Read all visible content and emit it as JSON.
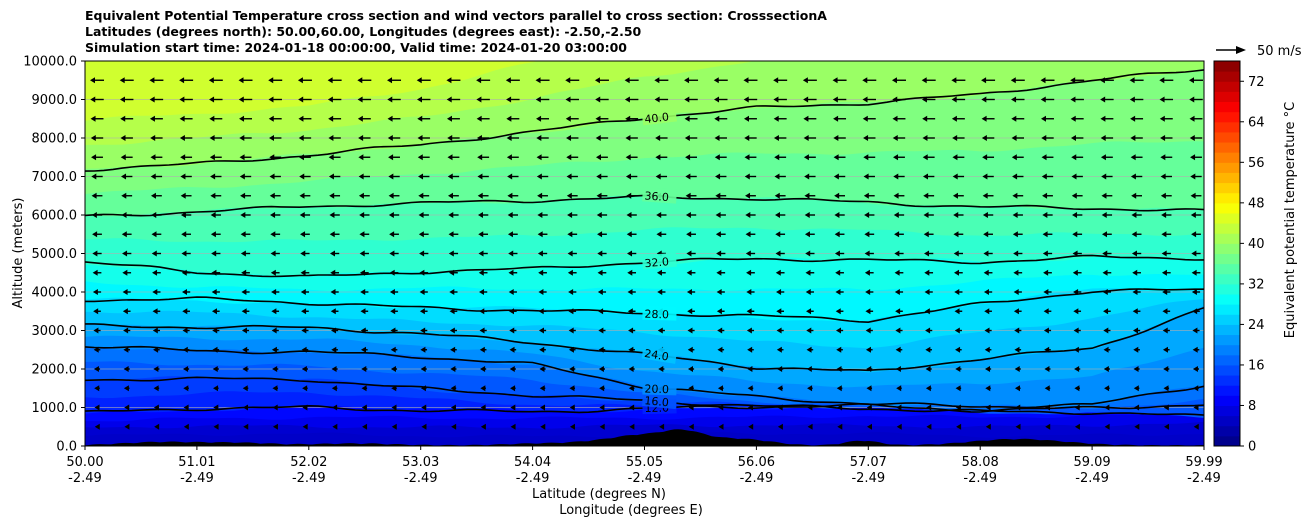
{
  "chart_data": {
    "type": "contour",
    "title_lines": [
      "Equivalent Potential Temperature cross section and wind vectors parallel to cross section: CrosssectionA",
      "Latitudes (degrees north): 50.00,60.00, Longitudes (degrees east): -2.50,-2.50",
      "Simulation start time: 2024-01-18 00:00:00, Valid time: 2024-01-20 03:00:00"
    ],
    "ylabel": "Altitude (meters)",
    "xlabel_line1": "Latitude (degrees N)",
    "xlabel_line2": "Longitude (degrees E)",
    "ylim": [
      0,
      10000
    ],
    "y_ticks": [
      "0.0",
      "1000.0",
      "2000.0",
      "3000.0",
      "4000.0",
      "5000.0",
      "6000.0",
      "7000.0",
      "8000.0",
      "9000.0",
      "10000.0"
    ],
    "x_ticks": [
      {
        "lat": "50.00",
        "lon": "-2.49"
      },
      {
        "lat": "51.01",
        "lon": "-2.49"
      },
      {
        "lat": "52.02",
        "lon": "-2.49"
      },
      {
        "lat": "53.03",
        "lon": "-2.49"
      },
      {
        "lat": "54.04",
        "lon": "-2.49"
      },
      {
        "lat": "55.05",
        "lon": "-2.49"
      },
      {
        "lat": "56.06",
        "lon": "-2.49"
      },
      {
        "lat": "57.07",
        "lon": "-2.49"
      },
      {
        "lat": "58.08",
        "lon": "-2.49"
      },
      {
        "lat": "59.09",
        "lon": "-2.49"
      },
      {
        "lat": "59.99",
        "lon": "-2.49"
      }
    ],
    "colorbar": {
      "label": "Equivalent potential temperature $^\\circ$C",
      "label_display": "Equivalent potential temperature °C",
      "min": 0,
      "max": 76,
      "ticks": [
        "0",
        "8",
        "16",
        "24",
        "32",
        "40",
        "48",
        "56",
        "64",
        "72"
      ],
      "colormap": "jet"
    },
    "quiver_key": "50 m/s",
    "contours": [
      {
        "value": 12,
        "label": "12.0",
        "heights": [
          850,
          950,
          1000,
          950,
          900,
          950,
          1000,
          1050,
          950,
          1000,
          1050
        ]
      },
      {
        "value": 16,
        "label": "16.0",
        "heights": [
          1700,
          1750,
          1750,
          1500,
          1300,
          1150,
          1050,
          1000,
          900,
          850,
          750
        ]
      },
      {
        "value": 20,
        "label": "20.0",
        "heights": [
          2600,
          2500,
          2450,
          2300,
          2100,
          1550,
          1300,
          1100,
          1000,
          1050,
          1600
        ]
      },
      {
        "value": 24,
        "label": "24.0",
        "heights": [
          3150,
          3100,
          3050,
          2900,
          2700,
          2400,
          2050,
          1900,
          2250,
          2550,
          3600
        ]
      },
      {
        "value": 28,
        "label": "28.0",
        "heights": [
          3800,
          3800,
          3700,
          3600,
          3550,
          3450,
          3350,
          3250,
          3700,
          4050,
          4050
        ]
      },
      {
        "value": 32,
        "label": "32.0",
        "heights": [
          4750,
          4500,
          4400,
          4550,
          4600,
          4750,
          4850,
          4850,
          4800,
          4900,
          4850
        ]
      },
      {
        "value": 36,
        "label": "36.0",
        "heights": [
          5950,
          6100,
          6250,
          6300,
          6350,
          6450,
          6450,
          6350,
          6200,
          6150,
          6100
        ]
      },
      {
        "value": 40,
        "label": "40.0",
        "heights": [
          7200,
          7350,
          7550,
          7800,
          8150,
          8550,
          8800,
          8900,
          9100,
          9500,
          9800
        ]
      }
    ],
    "fill_levels": [
      6,
      8,
      10,
      12,
      14,
      16,
      18,
      20,
      22,
      24,
      26,
      28,
      30,
      32,
      34,
      36,
      38,
      40,
      42,
      44
    ]
  }
}
